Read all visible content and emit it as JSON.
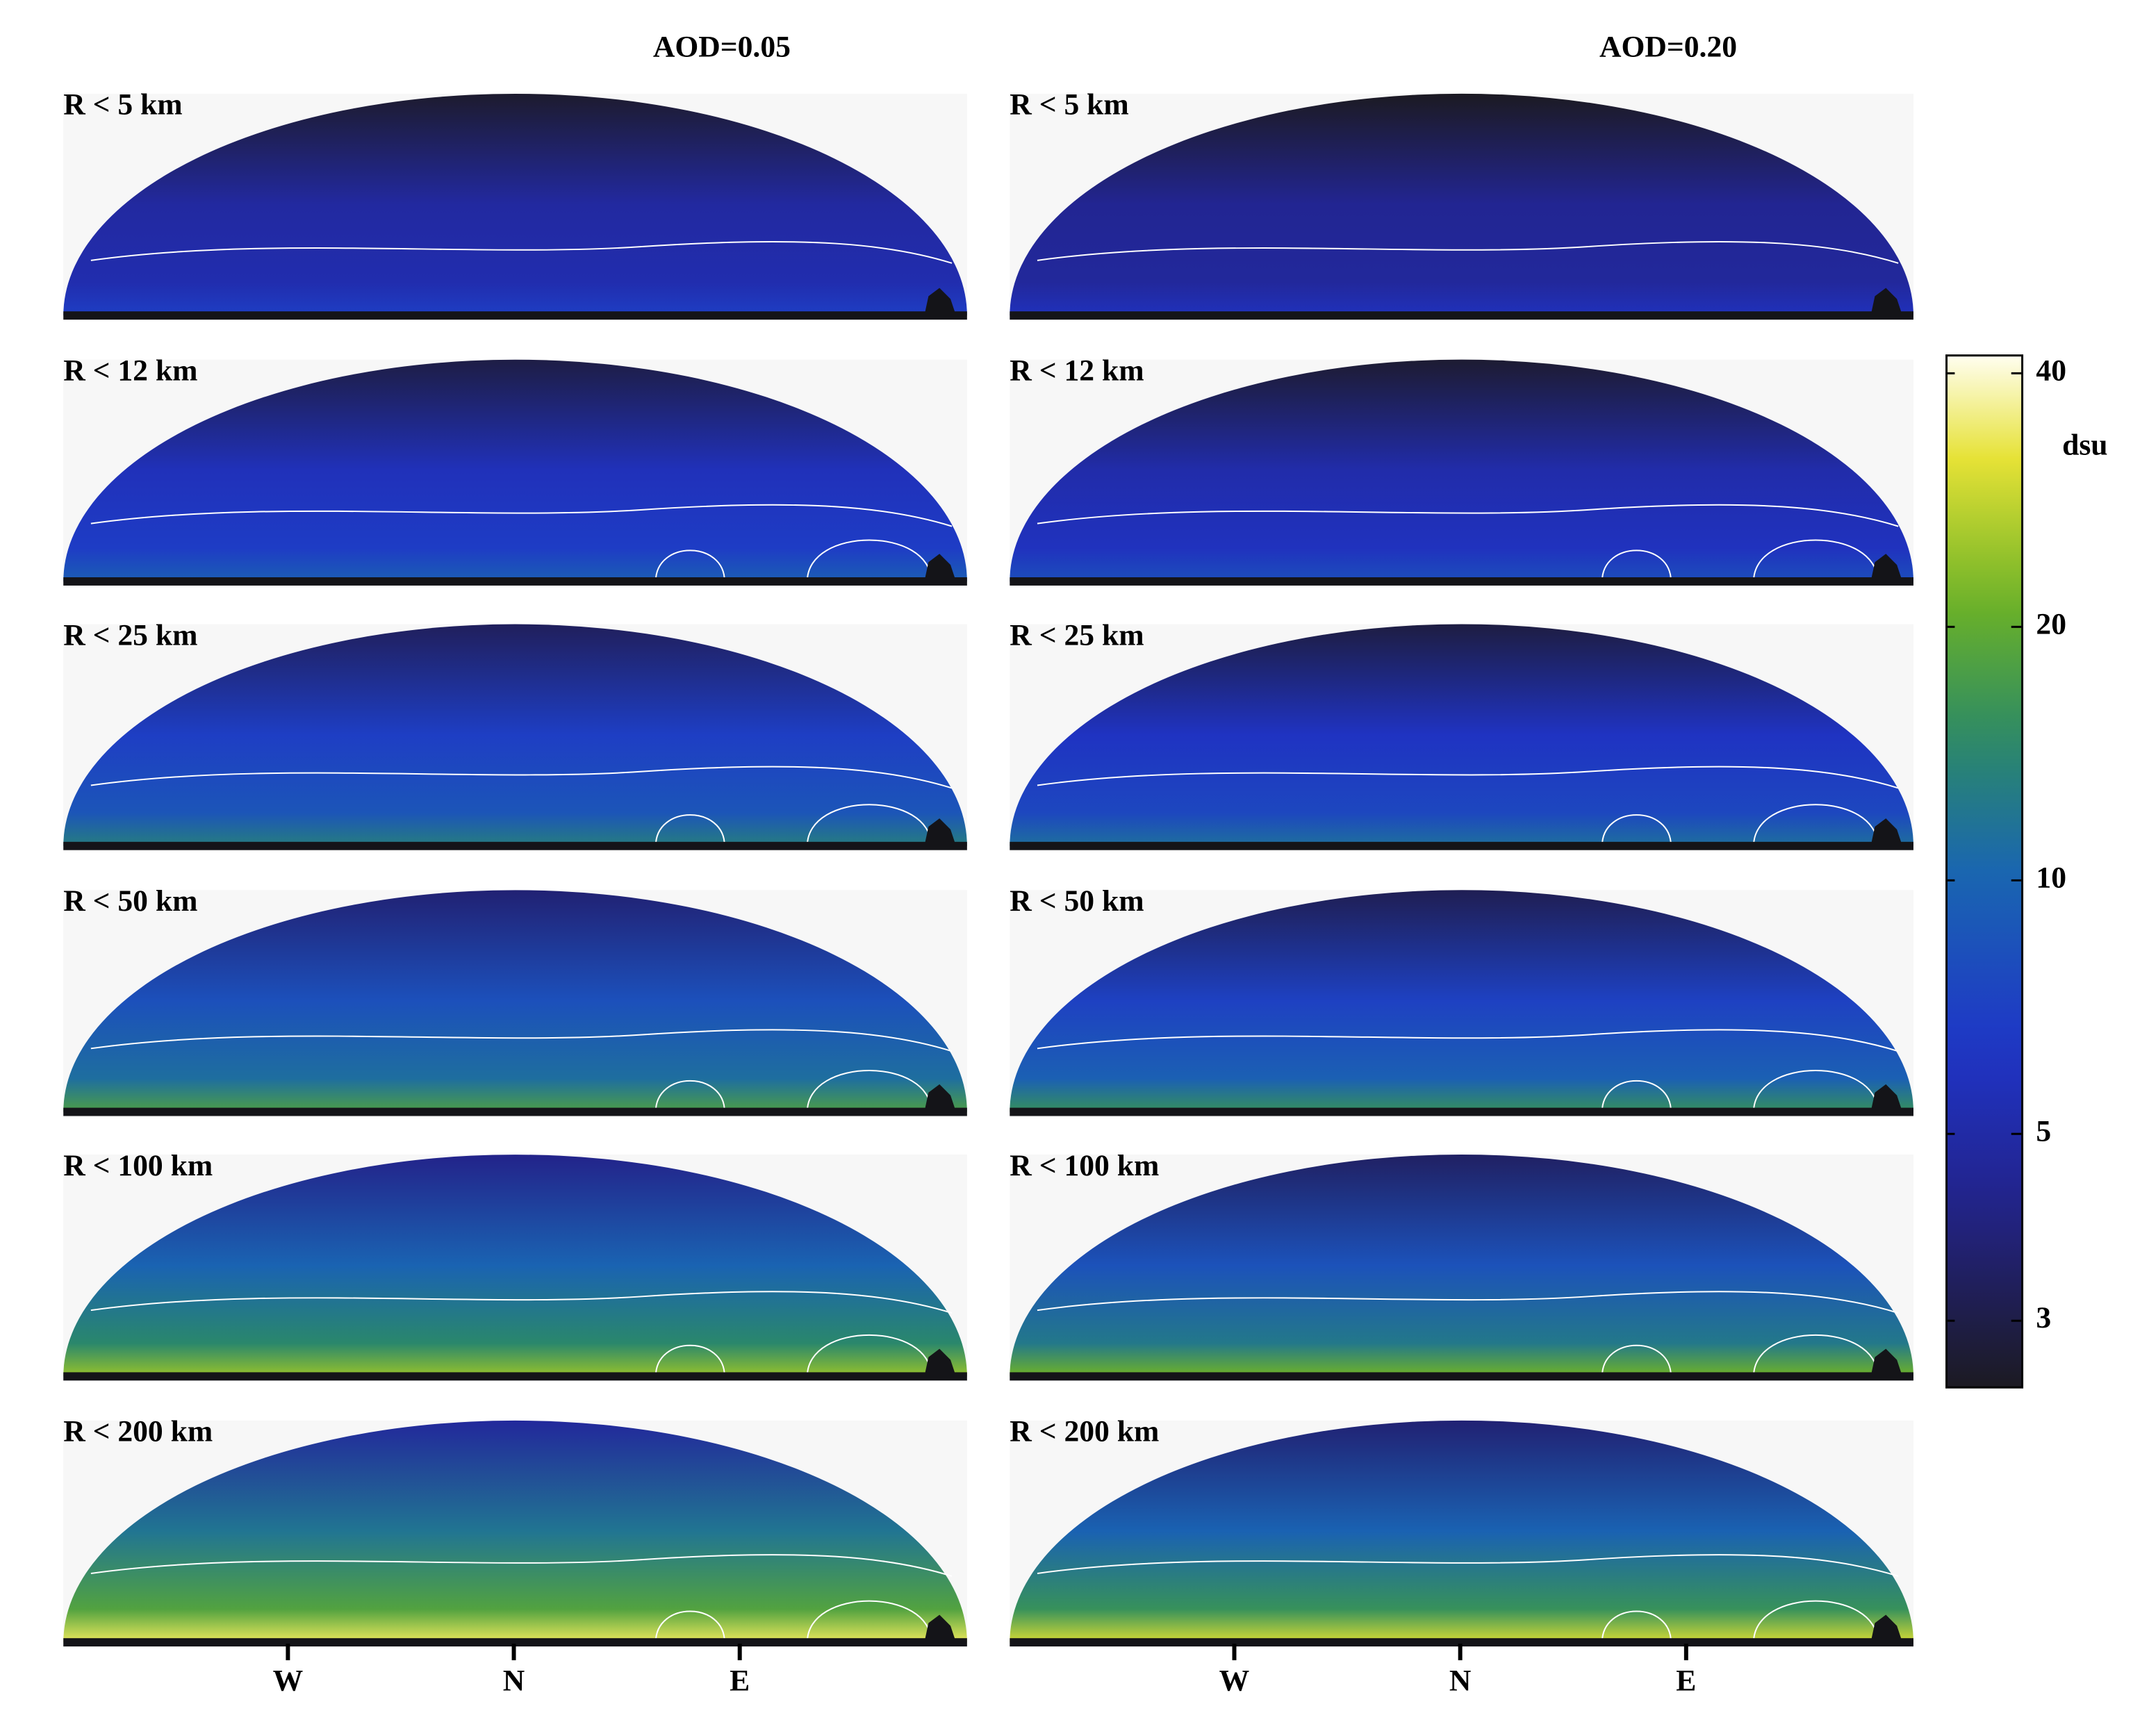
{
  "chart_data": {
    "type": "sky-map-panels",
    "columns": [
      "AOD=0.05",
      "AOD=0.20"
    ],
    "rows": [
      "R < 5 km",
      "R < 12 km",
      "R < 25 km",
      "R < 50 km",
      "R < 100 km",
      "R < 200 km"
    ],
    "x_tick_labels": [
      "W",
      "N",
      "E"
    ],
    "colorbar": {
      "label": "dsu",
      "scale": "log",
      "lim": [
        2.5,
        42
      ],
      "ticks": [
        3,
        5,
        10,
        20,
        40
      ]
    }
  }
}
